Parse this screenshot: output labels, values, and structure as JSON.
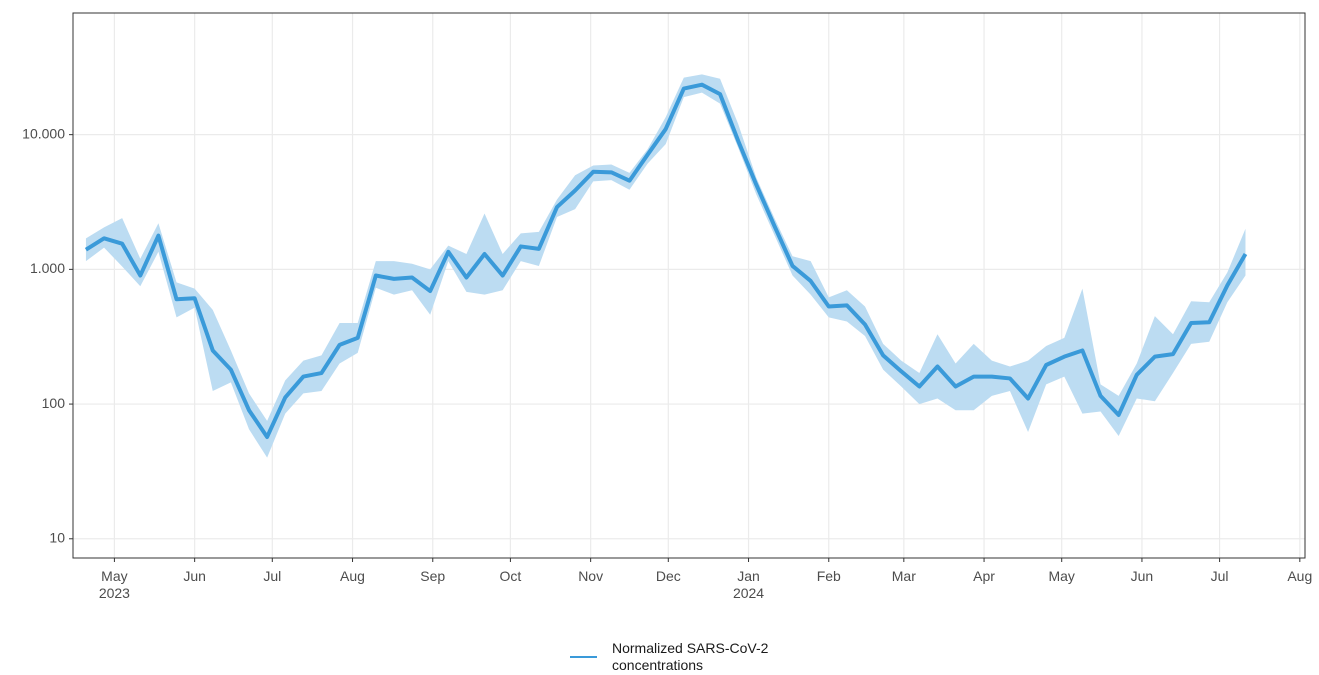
{
  "chart_data": {
    "type": "line_band",
    "x": [
      "2023-04-20",
      "2023-04-27",
      "2023-05-04",
      "2023-05-11",
      "2023-05-18",
      "2023-05-25",
      "2023-06-01",
      "2023-06-08",
      "2023-06-15",
      "2023-06-22",
      "2023-06-29",
      "2023-07-06",
      "2023-07-13",
      "2023-07-20",
      "2023-07-27",
      "2023-08-03",
      "2023-08-10",
      "2023-08-17",
      "2023-08-24",
      "2023-08-31",
      "2023-09-07",
      "2023-09-14",
      "2023-09-21",
      "2023-09-28",
      "2023-10-05",
      "2023-10-12",
      "2023-10-19",
      "2023-10-26",
      "2023-11-02",
      "2023-11-09",
      "2023-11-16",
      "2023-11-23",
      "2023-11-30",
      "2023-12-07",
      "2023-12-14",
      "2023-12-21",
      "2023-12-28",
      "2024-01-04",
      "2024-01-11",
      "2024-01-18",
      "2024-01-25",
      "2024-02-01",
      "2024-02-08",
      "2024-02-15",
      "2024-02-22",
      "2024-02-29",
      "2024-03-07",
      "2024-03-14",
      "2024-03-21",
      "2024-03-28",
      "2024-04-04",
      "2024-04-11",
      "2024-04-18",
      "2024-04-25",
      "2024-05-02",
      "2024-05-09",
      "2024-05-16",
      "2024-05-23",
      "2024-05-30",
      "2024-06-06",
      "2024-06-13",
      "2024-06-20",
      "2024-06-27",
      "2024-07-04",
      "2024-07-11"
    ],
    "series": [
      {
        "name": "Normalized SARS-CoV-2 concentrations",
        "color": "#3a9ad9",
        "band_color": "#bcdcf2",
        "values": [
          1400,
          1700,
          1550,
          900,
          1780,
          600,
          610,
          250,
          180,
          90,
          57,
          112,
          160,
          170,
          275,
          310,
          900,
          850,
          870,
          690,
          1350,
          870,
          1300,
          900,
          1480,
          1420,
          2900,
          3850,
          5300,
          5250,
          4550,
          7100,
          11000,
          22000,
          23500,
          20000,
          9000,
          4250,
          2100,
          1060,
          820,
          530,
          540,
          390,
          230,
          175,
          135,
          190,
          135,
          160,
          160,
          155,
          110,
          195,
          225,
          250,
          115,
          83,
          165,
          225,
          235,
          400,
          405,
          760,
          1300
        ],
        "upper": [
          1700,
          2050,
          2400,
          1200,
          2200,
          800,
          720,
          500,
          250,
          120,
          75,
          150,
          210,
          230,
          400,
          400,
          1150,
          1150,
          1100,
          1000,
          1500,
          1300,
          2600,
          1300,
          1850,
          1900,
          3300,
          5000,
          5900,
          6000,
          5200,
          7800,
          13500,
          26500,
          28000,
          26000,
          12000,
          4800,
          2400,
          1250,
          1150,
          620,
          700,
          530,
          280,
          210,
          170,
          330,
          200,
          280,
          210,
          190,
          210,
          270,
          310,
          720,
          140,
          115,
          200,
          450,
          330,
          580,
          570,
          950,
          2000
        ],
        "lower": [
          1150,
          1450,
          1050,
          750,
          1350,
          440,
          520,
          125,
          145,
          65,
          40,
          85,
          120,
          125,
          200,
          240,
          730,
          650,
          700,
          460,
          1150,
          680,
          650,
          700,
          1150,
          1060,
          2450,
          2800,
          4500,
          4600,
          3900,
          6100,
          8500,
          19000,
          20500,
          17000,
          8000,
          3600,
          1800,
          900,
          650,
          440,
          410,
          320,
          180,
          135,
          100,
          110,
          90,
          90,
          115,
          125,
          62,
          140,
          160,
          85,
          88,
          58,
          110,
          105,
          170,
          280,
          290,
          570,
          900
        ]
      }
    ],
    "log_y": true,
    "grid": true,
    "legend": "bottom",
    "ylim": [
      7.2,
      80000
    ],
    "yticks": [
      10,
      100,
      {
        "value": 1000,
        "label": "1.000"
      },
      {
        "value": 10000,
        "label": "10.000"
      }
    ],
    "xlim": [
      "2023-04-15",
      "2024-08-03"
    ],
    "xticks": [
      {
        "value": "2023-05-01",
        "label": "May 2023"
      },
      {
        "value": "2023-06-01",
        "label": "Jun"
      },
      {
        "value": "2023-07-01",
        "label": "Jul"
      },
      {
        "value": "2023-08-01",
        "label": "Aug"
      },
      {
        "value": "2023-09-01",
        "label": "Sep"
      },
      {
        "value": "2023-10-01",
        "label": "Oct"
      },
      {
        "value": "2023-11-01",
        "label": "Nov"
      },
      {
        "value": "2023-12-01",
        "label": "Dec"
      },
      {
        "value": "2024-01-01",
        "label": "Jan 2024"
      },
      {
        "value": "2024-02-01",
        "label": "Feb"
      },
      {
        "value": "2024-03-01",
        "label": "Mar"
      },
      {
        "value": "2024-04-01",
        "label": "Apr"
      },
      {
        "value": "2024-05-01",
        "label": "May"
      },
      {
        "value": "2024-06-01",
        "label": "Jun"
      },
      {
        "value": "2024-07-01",
        "label": "Jul"
      },
      {
        "value": "2024-08-01",
        "label": "Aug"
      }
    ]
  }
}
